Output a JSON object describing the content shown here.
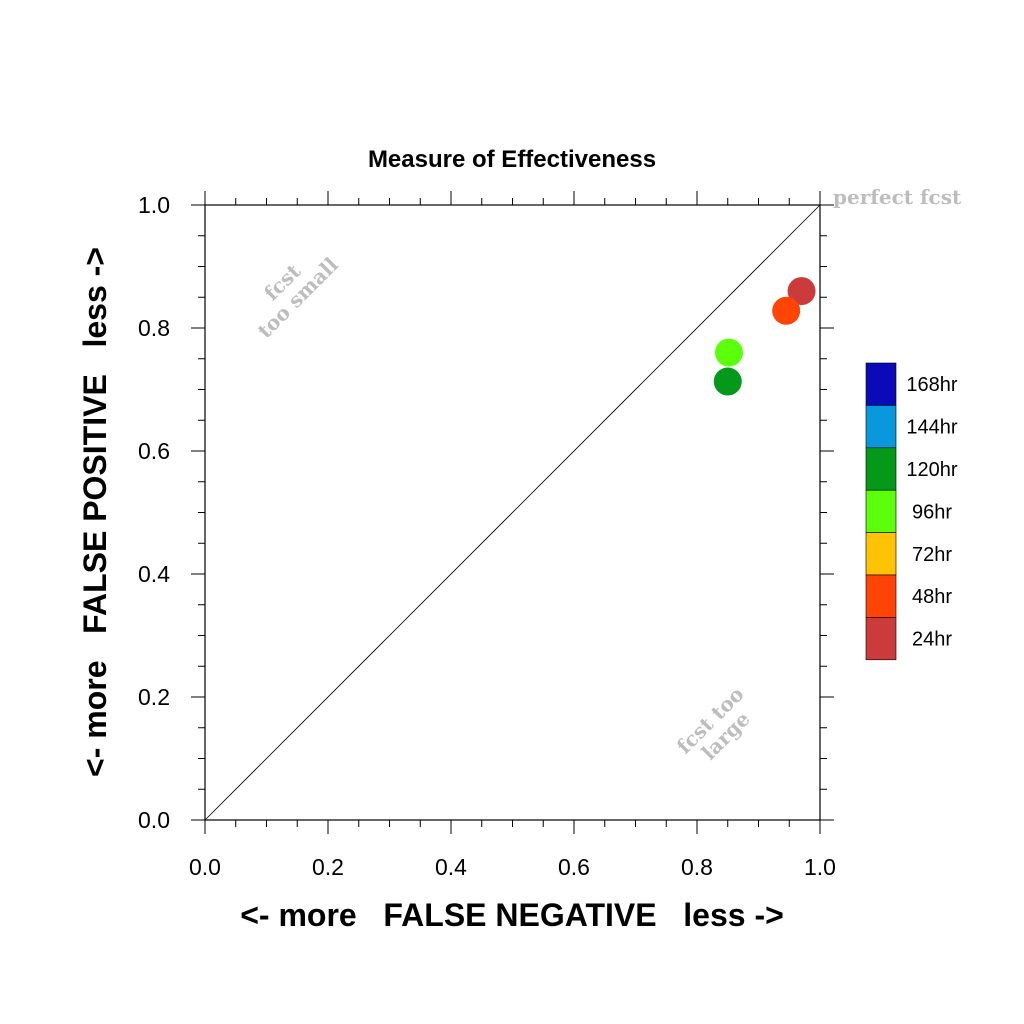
{
  "chart_data": {
    "type": "scatter",
    "title": "Measure of Effectiveness",
    "xlabel": "<- more   FALSE NEGATIVE   less ->",
    "ylabel": "<- more   FALSE POSITIVE   less ->",
    "xlim": [
      0,
      1
    ],
    "ylim": [
      0,
      1
    ],
    "x_ticks": [
      "0.0",
      "0.2",
      "0.4",
      "0.6",
      "0.8",
      "1.0"
    ],
    "y_ticks": [
      "0.0",
      "0.2",
      "0.4",
      "0.6",
      "0.8",
      "1.0"
    ],
    "x_tick_values": [
      0,
      0.2,
      0.4,
      0.6,
      0.8,
      1.0
    ],
    "y_tick_values": [
      0,
      0.2,
      0.4,
      0.6,
      0.8,
      1.0
    ],
    "diagonal": true,
    "grid": false,
    "annotations": {
      "perfect": "perfect fcst",
      "small_line1": "fcst",
      "small_line2": "too small",
      "large_line1": "fcst too",
      "large_line2": "large"
    },
    "legend": {
      "placement": "right",
      "entries": [
        {
          "label": "168hr",
          "color": "#0a0ab8"
        },
        {
          "label": "144hr",
          "color": "#0a98dc"
        },
        {
          "label": "120hr",
          "color": "#05991a"
        },
        {
          "label": "96hr",
          "color": "#5cff0a"
        },
        {
          "label": "72hr",
          "color": "#ffc305"
        },
        {
          "label": "48hr",
          "color": "#ff4405"
        },
        {
          "label": "24hr",
          "color": "#cc3b3b"
        }
      ]
    },
    "points": [
      {
        "series": "24hr",
        "x": 0.97,
        "y": 0.86,
        "color": "#cc3b3b"
      },
      {
        "series": "48hr",
        "x": 0.945,
        "y": 0.828,
        "color": "#ff4405"
      },
      {
        "series": "96hr",
        "x": 0.852,
        "y": 0.76,
        "color": "#5cff0a"
      },
      {
        "series": "120hr",
        "x": 0.85,
        "y": 0.713,
        "color": "#05991a"
      }
    ]
  }
}
